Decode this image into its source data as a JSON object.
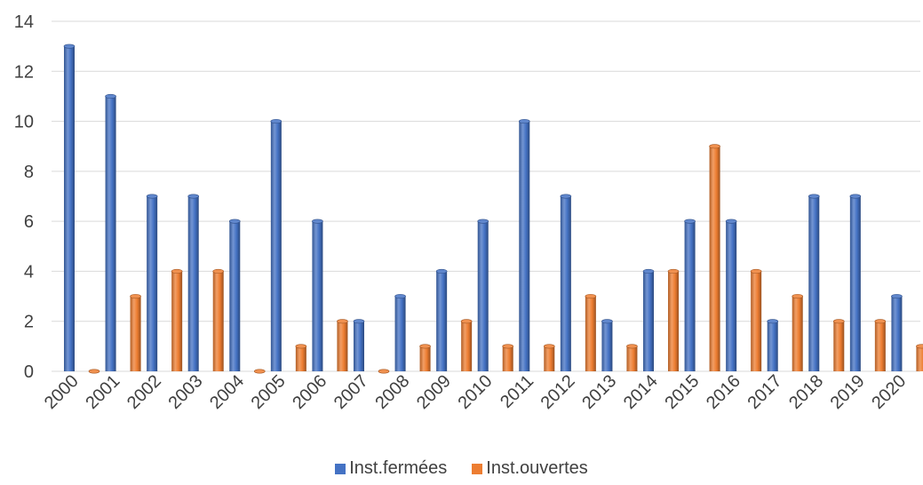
{
  "chart_data": {
    "type": "bar",
    "title": "",
    "xlabel": "",
    "ylabel": "",
    "ylim": [
      0,
      14
    ],
    "yticks": [
      0,
      2,
      4,
      6,
      8,
      10,
      12,
      14
    ],
    "grid": true,
    "legend_position": "bottom",
    "categories": [
      "2000",
      "2001",
      "2002",
      "2003",
      "2004",
      "2005",
      "2006",
      "2007",
      "2008",
      "2009",
      "2010",
      "2011",
      "2012",
      "2013",
      "2014",
      "2015",
      "2016",
      "2017",
      "2018",
      "2019",
      "2020"
    ],
    "series": [
      {
        "name": "Inst.fermées",
        "color": "#4472C4",
        "values": [
          13,
          11,
          7,
          7,
          6,
          10,
          6,
          2,
          3,
          4,
          6,
          10,
          7,
          2,
          4,
          6,
          6,
          2,
          7,
          7,
          3
        ]
      },
      {
        "name": "Inst.ouvertes",
        "color": "#ED7D31",
        "values": [
          0,
          3,
          4,
          4,
          0,
          1,
          2,
          0,
          1,
          2,
          1,
          1,
          3,
          1,
          4,
          9,
          4,
          3,
          2,
          2,
          1
        ]
      }
    ]
  }
}
